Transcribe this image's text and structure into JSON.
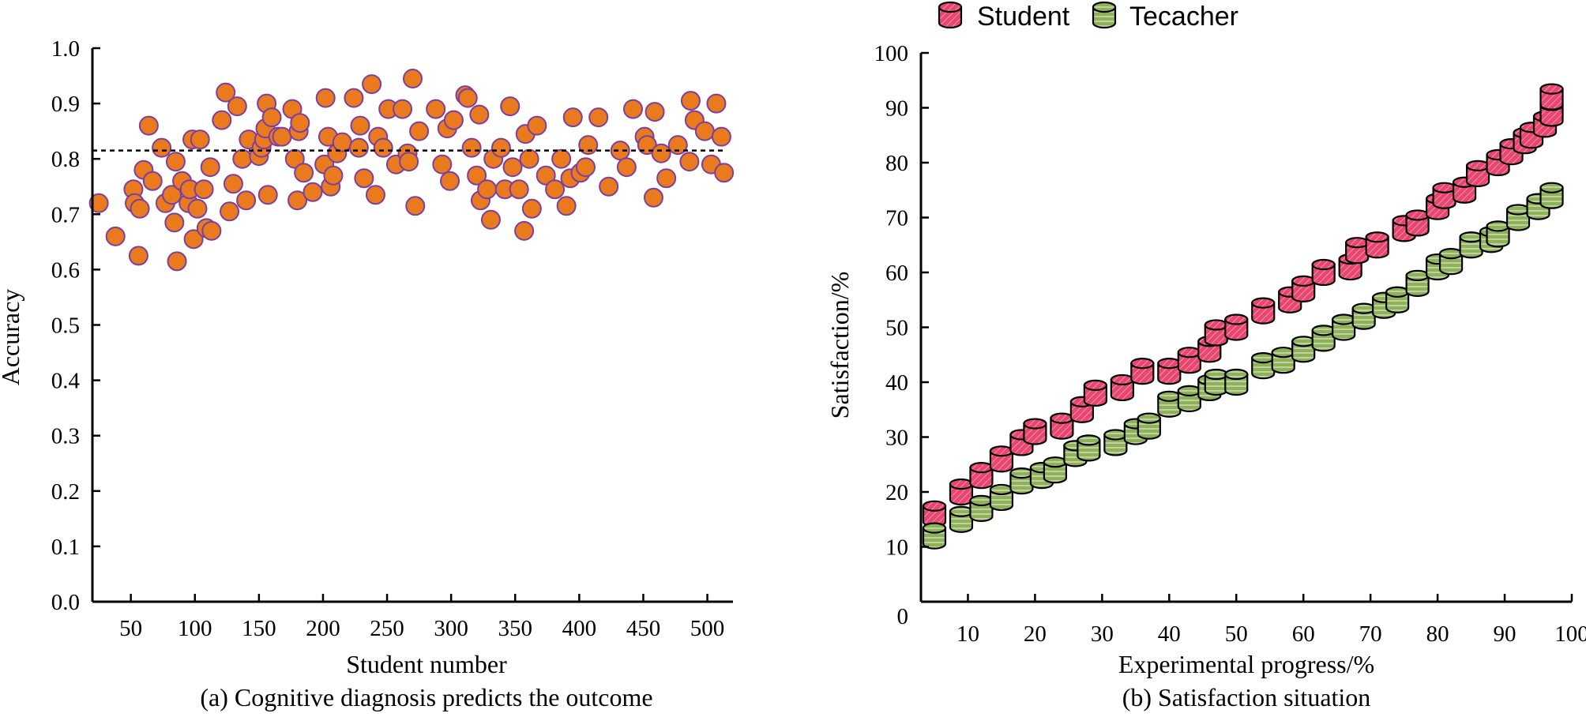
{
  "figure": {
    "caption_a": "(a) Cognitive diagnosis predicts the outcome",
    "caption_b": "(b) Satisfaction situation"
  },
  "colors": {
    "scatter_fill": "#ea7a1e",
    "scatter_stroke": "#7b3fa3",
    "student_fill": "#e8456f",
    "teacher_fill": "#8fb15a",
    "axis": "#000000"
  },
  "chart_data": [
    {
      "type": "scatter",
      "title": "(a) Cognitive diagnosis predicts the outcome",
      "xlabel": "Student number",
      "ylabel": "Accuracy",
      "xlim": [
        20,
        520
      ],
      "ylim": [
        0.0,
        1.0
      ],
      "xticks": [
        50,
        100,
        150,
        200,
        250,
        300,
        350,
        400,
        450,
        500
      ],
      "yticks": [
        "0.0",
        "0.1",
        "0.2",
        "0.3",
        "0.4",
        "0.5",
        "0.6",
        "0.7",
        "0.8",
        "0.9",
        "1.0"
      ],
      "reference_line": 0.815,
      "grid": false,
      "points": [
        [
          25,
          0.72
        ],
        [
          38,
          0.66
        ],
        [
          52,
          0.745
        ],
        [
          53,
          0.72
        ],
        [
          56,
          0.625
        ],
        [
          57,
          0.71
        ],
        [
          60,
          0.78
        ],
        [
          64,
          0.86
        ],
        [
          67,
          0.76
        ],
        [
          74,
          0.82
        ],
        [
          77,
          0.72
        ],
        [
          82,
          0.735
        ],
        [
          84,
          0.685
        ],
        [
          85,
          0.795
        ],
        [
          86,
          0.615
        ],
        [
          90,
          0.76
        ],
        [
          95,
          0.72
        ],
        [
          96,
          0.745
        ],
        [
          98,
          0.835
        ],
        [
          99,
          0.655
        ],
        [
          102,
          0.71
        ],
        [
          104,
          0.835
        ],
        [
          107,
          0.745
        ],
        [
          109,
          0.675
        ],
        [
          112,
          0.785
        ],
        [
          113,
          0.67
        ],
        [
          121,
          0.87
        ],
        [
          124,
          0.92
        ],
        [
          127,
          0.705
        ],
        [
          130,
          0.755
        ],
        [
          133,
          0.895
        ],
        [
          137,
          0.8
        ],
        [
          140,
          0.725
        ],
        [
          142,
          0.835
        ],
        [
          150,
          0.805
        ],
        [
          152,
          0.82
        ],
        [
          154,
          0.835
        ],
        [
          155,
          0.855
        ],
        [
          156,
          0.9
        ],
        [
          157,
          0.735
        ],
        [
          160,
          0.875
        ],
        [
          165,
          0.84
        ],
        [
          168,
          0.84
        ],
        [
          176,
          0.89
        ],
        [
          178,
          0.8
        ],
        [
          180,
          0.725
        ],
        [
          181,
          0.85
        ],
        [
          182,
          0.865
        ],
        [
          185,
          0.775
        ],
        [
          192,
          0.74
        ],
        [
          201,
          0.79
        ],
        [
          202,
          0.91
        ],
        [
          204,
          0.84
        ],
        [
          206,
          0.75
        ],
        [
          208,
          0.77
        ],
        [
          211,
          0.81
        ],
        [
          215,
          0.83
        ],
        [
          224,
          0.91
        ],
        [
          228,
          0.82
        ],
        [
          229,
          0.86
        ],
        [
          232,
          0.765
        ],
        [
          238,
          0.935
        ],
        [
          241,
          0.735
        ],
        [
          243,
          0.84
        ],
        [
          247,
          0.82
        ],
        [
          251,
          0.89
        ],
        [
          257,
          0.79
        ],
        [
          262,
          0.89
        ],
        [
          266,
          0.81
        ],
        [
          267,
          0.795
        ],
        [
          270,
          0.945
        ],
        [
          272,
          0.715
        ],
        [
          275,
          0.85
        ],
        [
          288,
          0.89
        ],
        [
          293,
          0.79
        ],
        [
          297,
          0.855
        ],
        [
          299,
          0.76
        ],
        [
          302,
          0.87
        ],
        [
          311,
          0.915
        ],
        [
          313,
          0.91
        ],
        [
          316,
          0.82
        ],
        [
          320,
          0.77
        ],
        [
          322,
          0.88
        ],
        [
          323,
          0.725
        ],
        [
          328,
          0.745
        ],
        [
          331,
          0.69
        ],
        [
          333,
          0.8
        ],
        [
          339,
          0.82
        ],
        [
          342,
          0.745
        ],
        [
          346,
          0.895
        ],
        [
          348,
          0.785
        ],
        [
          353,
          0.745
        ],
        [
          357,
          0.67
        ],
        [
          358,
          0.845
        ],
        [
          361,
          0.8
        ],
        [
          363,
          0.71
        ],
        [
          367,
          0.86
        ],
        [
          374,
          0.77
        ],
        [
          381,
          0.745
        ],
        [
          386,
          0.8
        ],
        [
          390,
          0.715
        ],
        [
          393,
          0.765
        ],
        [
          395,
          0.875
        ],
        [
          401,
          0.775
        ],
        [
          405,
          0.785
        ],
        [
          407,
          0.825
        ],
        [
          415,
          0.875
        ],
        [
          423,
          0.75
        ],
        [
          432,
          0.815
        ],
        [
          437,
          0.785
        ],
        [
          442,
          0.89
        ],
        [
          451,
          0.84
        ],
        [
          453,
          0.825
        ],
        [
          458,
          0.73
        ],
        [
          459,
          0.885
        ],
        [
          464,
          0.81
        ],
        [
          468,
          0.765
        ],
        [
          477,
          0.825
        ],
        [
          486,
          0.795
        ],
        [
          487,
          0.905
        ],
        [
          490,
          0.87
        ],
        [
          498,
          0.85
        ],
        [
          503,
          0.79
        ],
        [
          507,
          0.9
        ],
        [
          511,
          0.84
        ],
        [
          513,
          0.775
        ]
      ]
    },
    {
      "type": "scatter",
      "title": "(b) Satisfaction situation",
      "xlabel": "Experimental progress/%",
      "ylabel": "Satisfaction/%",
      "xlim": [
        3,
        100
      ],
      "ylim": [
        0,
        100
      ],
      "xticks": [
        10,
        20,
        30,
        40,
        50,
        60,
        70,
        80,
        90,
        100
      ],
      "yticks": [
        0,
        10,
        20,
        30,
        40,
        50,
        60,
        70,
        80,
        90,
        100
      ],
      "legend": "top",
      "grid": false,
      "series": [
        {
          "name": "Student",
          "x": [
            5,
            9,
            12,
            15,
            18,
            20,
            24,
            27,
            29,
            33,
            36,
            40,
            43,
            46,
            47,
            50,
            54,
            58,
            60,
            63,
            67,
            68,
            71,
            75,
            77,
            80,
            81,
            84,
            86,
            89,
            91,
            93,
            94,
            96,
            97
          ],
          "y": [
            16,
            20,
            23,
            26,
            29,
            31,
            32,
            35,
            38,
            39,
            42,
            42,
            44,
            46,
            49,
            50,
            53,
            55,
            57,
            60,
            61,
            64,
            65,
            68,
            69,
            72,
            74,
            75,
            78,
            80,
            82,
            84,
            85,
            87,
            89
          ]
        },
        {
          "name": "Student",
          "x": [
            97
          ],
          "y": [
            92
          ]
        },
        {
          "name": "Tecacher",
          "x": [
            5,
            9,
            12,
            15,
            18,
            21,
            23,
            26,
            28,
            32,
            35,
            37,
            40,
            43,
            46,
            47,
            50,
            54,
            57,
            60,
            63,
            66,
            69,
            72,
            74,
            77,
            80,
            82,
            85,
            88,
            89,
            92,
            95,
            97
          ],
          "y": [
            12,
            15,
            17,
            19,
            22,
            23,
            24,
            27,
            28,
            29,
            31,
            32,
            36,
            37,
            39,
            40,
            40,
            43,
            44,
            46,
            48,
            50,
            52,
            54,
            55,
            58,
            61,
            62,
            65,
            66,
            67,
            70,
            72,
            74
          ]
        }
      ]
    }
  ],
  "legend": {
    "student_label": "Student",
    "teacher_label": "Tecacher"
  }
}
